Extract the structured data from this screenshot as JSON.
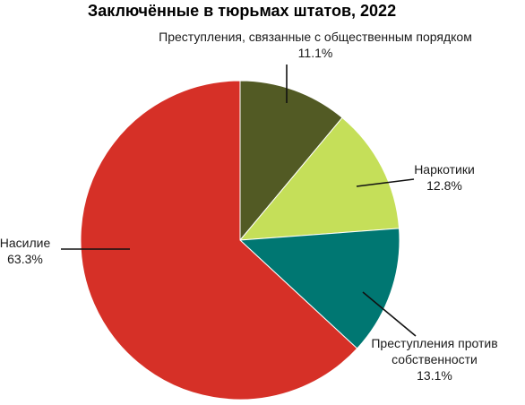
{
  "chart_data": {
    "type": "pie",
    "title": "Заключённые в тюрьмах штатов, 2022",
    "slices": [
      {
        "label_lines": [
          "Преступления, связанные с общественным порядком"
        ],
        "value": 11.1,
        "value_label": "11.1%",
        "color": "#525a24"
      },
      {
        "label_lines": [
          "Наркотики"
        ],
        "value": 12.8,
        "value_label": "12.8%",
        "color": "#c5df59"
      },
      {
        "label_lines": [
          "Преступления против",
          "собственности"
        ],
        "value": 13.1,
        "value_label": "13.1%",
        "color": "#007772"
      },
      {
        "label_lines": [
          "Насилие"
        ],
        "value": 63.3,
        "value_label": "63.3%",
        "color": "#d63027"
      }
    ]
  }
}
